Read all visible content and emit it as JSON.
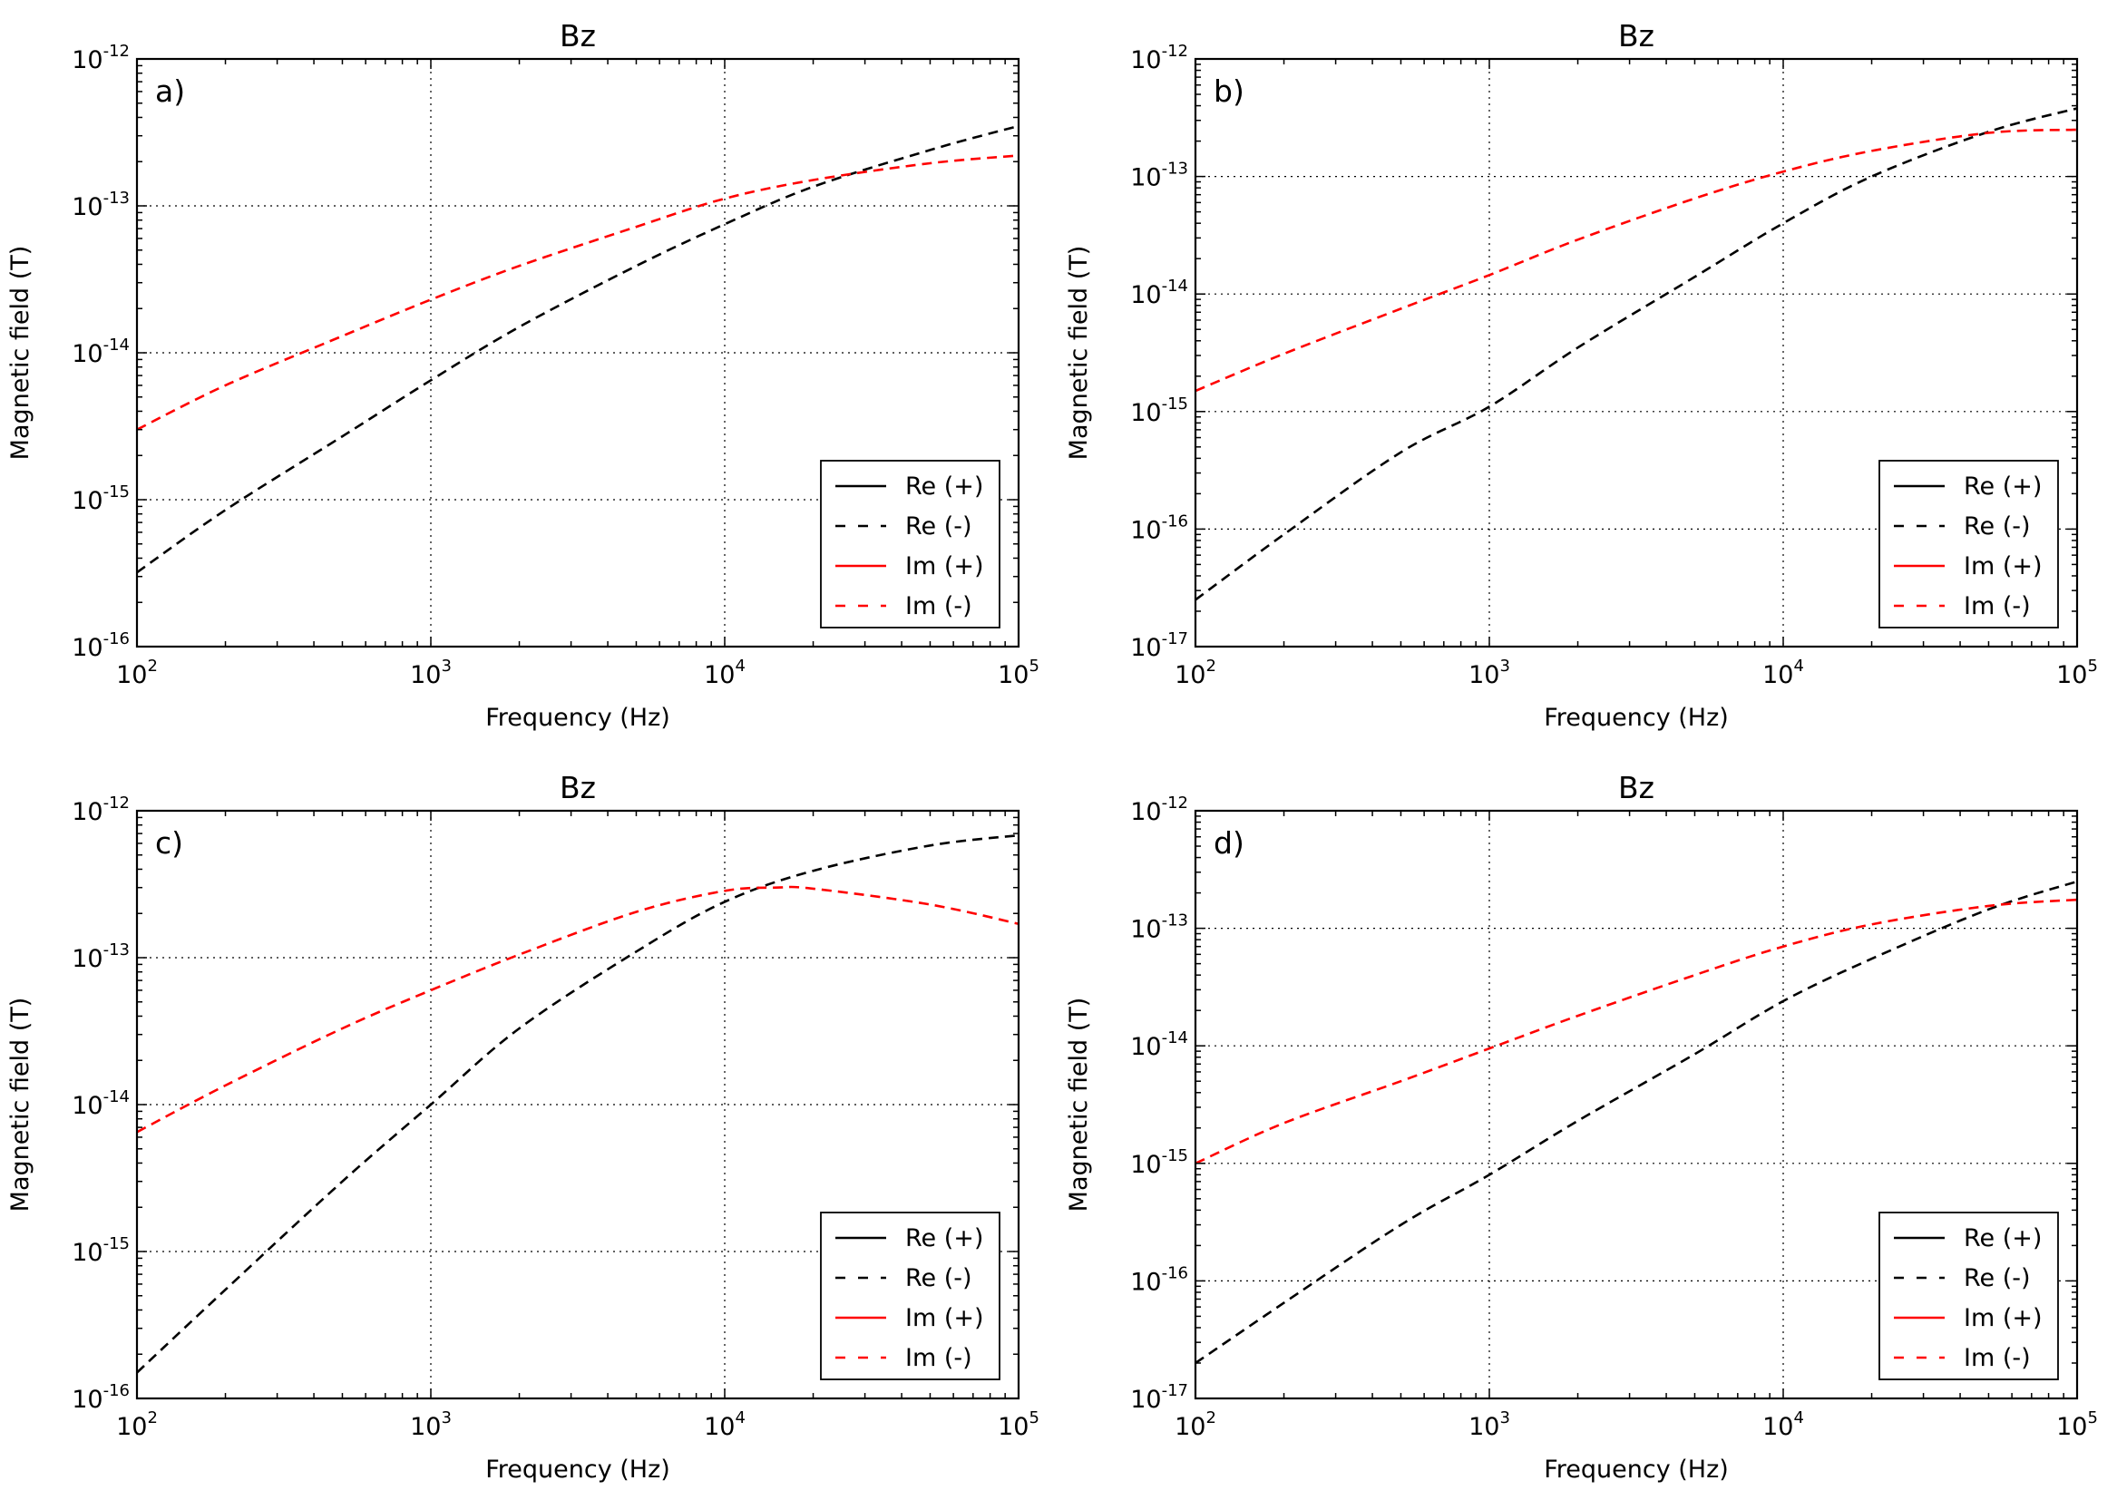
{
  "chart_data": [
    {
      "type": "line",
      "title": "Bz",
      "panel_label": "a)",
      "xlabel": "Frequency (Hz)",
      "ylabel": "Magnetic field (T)",
      "xscale": "log",
      "yscale": "log",
      "xlim": [
        100,
        100000
      ],
      "ylim": [
        1e-16,
        1e-12
      ],
      "x_ticks": [
        {
          "base": "10",
          "exp": "2"
        },
        {
          "base": "10",
          "exp": "3"
        },
        {
          "base": "10",
          "exp": "4"
        },
        {
          "base": "10",
          "exp": "5"
        }
      ],
      "y_ticks": [
        {
          "base": "10",
          "exp": "-16"
        },
        {
          "base": "10",
          "exp": "-15"
        },
        {
          "base": "10",
          "exp": "-14"
        },
        {
          "base": "10",
          "exp": "-13"
        },
        {
          "base": "10",
          "exp": "-12"
        }
      ],
      "grid": true,
      "legend": {
        "position": "lower-right",
        "entries": [
          "Re (+)",
          "Re (-)",
          "Im (+)",
          "Im (-)"
        ]
      },
      "series": [
        {
          "name": "Re (+)",
          "color": "#000000",
          "style": "solid",
          "x": [],
          "y": []
        },
        {
          "name": "Re (-)",
          "color": "#000000",
          "style": "dashed",
          "x": [
            100,
            200,
            500,
            1000,
            2000,
            5000,
            10000,
            20000,
            50000,
            100000
          ],
          "y": [
            3.2e-16,
            8.5e-16,
            2.7e-15,
            6.5e-15,
            1.5e-14,
            3.9e-14,
            7.5e-14,
            1.35e-13,
            2.4e-13,
            3.5e-13
          ]
        },
        {
          "name": "Im (+)",
          "color": "#ff0000",
          "style": "solid",
          "x": [],
          "y": []
        },
        {
          "name": "Im (-)",
          "color": "#ff0000",
          "style": "dashed",
          "x": [
            100,
            200,
            500,
            1000,
            2000,
            5000,
            10000,
            20000,
            50000,
            100000
          ],
          "y": [
            3e-15,
            6e-15,
            1.3e-14,
            2.3e-14,
            3.9e-14,
            7.2e-14,
            1.12e-13,
            1.5e-13,
            1.95e-13,
            2.2e-13
          ]
        }
      ]
    },
    {
      "type": "line",
      "title": "Bz",
      "panel_label": "b)",
      "xlabel": "Frequency (Hz)",
      "ylabel": "Magnetic field (T)",
      "xscale": "log",
      "yscale": "log",
      "xlim": [
        100,
        100000
      ],
      "ylim": [
        1e-17,
        1e-12
      ],
      "x_ticks": [
        {
          "base": "10",
          "exp": "2"
        },
        {
          "base": "10",
          "exp": "3"
        },
        {
          "base": "10",
          "exp": "4"
        },
        {
          "base": "10",
          "exp": "5"
        }
      ],
      "y_ticks": [
        {
          "base": "10",
          "exp": "-17"
        },
        {
          "base": "10",
          "exp": "-16"
        },
        {
          "base": "10",
          "exp": "-15"
        },
        {
          "base": "10",
          "exp": "-14"
        },
        {
          "base": "10",
          "exp": "-13"
        },
        {
          "base": "10",
          "exp": "-12"
        }
      ],
      "grid": true,
      "legend": {
        "position": "lower-right",
        "entries": [
          "Re (+)",
          "Re (-)",
          "Im (+)",
          "Im (-)"
        ]
      },
      "series": [
        {
          "name": "Re (+)",
          "color": "#000000",
          "style": "solid",
          "x": [],
          "y": []
        },
        {
          "name": "Re (-)",
          "color": "#000000",
          "style": "dashed",
          "x": [
            100,
            200,
            500,
            1000,
            2000,
            5000,
            10000,
            20000,
            50000,
            100000
          ],
          "y": [
            2.5e-17,
            9e-17,
            4.5e-16,
            1.1e-15,
            3.5e-15,
            1.4e-14,
            4e-14,
            1e-13,
            2.4e-13,
            3.8e-13
          ]
        },
        {
          "name": "Im (+)",
          "color": "#ff0000",
          "style": "solid",
          "x": [],
          "y": []
        },
        {
          "name": "Im (-)",
          "color": "#ff0000",
          "style": "dashed",
          "x": [
            100,
            200,
            500,
            1000,
            2000,
            5000,
            10000,
            20000,
            50000,
            100000
          ],
          "y": [
            1.5e-15,
            3.1e-15,
            7.5e-15,
            1.45e-14,
            2.9e-14,
            6.5e-14,
            1.1e-13,
            1.65e-13,
            2.35e-13,
            2.5e-13
          ]
        }
      ]
    },
    {
      "type": "line",
      "title": "Bz",
      "panel_label": "c)",
      "xlabel": "Frequency (Hz)",
      "ylabel": "Magnetic field (T)",
      "xscale": "log",
      "yscale": "log",
      "xlim": [
        100,
        100000
      ],
      "ylim": [
        1e-16,
        1e-12
      ],
      "x_ticks": [
        {
          "base": "10",
          "exp": "2"
        },
        {
          "base": "10",
          "exp": "3"
        },
        {
          "base": "10",
          "exp": "4"
        },
        {
          "base": "10",
          "exp": "5"
        }
      ],
      "y_ticks": [
        {
          "base": "10",
          "exp": "-16"
        },
        {
          "base": "10",
          "exp": "-15"
        },
        {
          "base": "10",
          "exp": "-14"
        },
        {
          "base": "10",
          "exp": "-13"
        },
        {
          "base": "10",
          "exp": "-12"
        }
      ],
      "grid": true,
      "legend": {
        "position": "lower-right",
        "entries": [
          "Re (+)",
          "Re (-)",
          "Im (+)",
          "Im (-)"
        ]
      },
      "series": [
        {
          "name": "Re (+)",
          "color": "#000000",
          "style": "solid",
          "x": [],
          "y": []
        },
        {
          "name": "Re (-)",
          "color": "#000000",
          "style": "dashed",
          "x": [
            100,
            200,
            500,
            1000,
            2000,
            5000,
            10000,
            20000,
            50000,
            100000
          ],
          "y": [
            1.5e-16,
            5.5e-16,
            3e-15,
            1e-14,
            3.3e-14,
            1.1e-13,
            2.4e-13,
            3.9e-13,
            5.8e-13,
            6.8e-13
          ]
        },
        {
          "name": "Im (+)",
          "color": "#ff0000",
          "style": "solid",
          "x": [],
          "y": []
        },
        {
          "name": "Im (-)",
          "color": "#ff0000",
          "style": "dashed",
          "x": [
            100,
            200,
            500,
            1000,
            2000,
            5000,
            10000,
            15000,
            20000,
            50000,
            100000
          ],
          "y": [
            6.5e-15,
            1.35e-14,
            3.3e-14,
            6e-14,
            1.05e-13,
            2.05e-13,
            2.85e-13,
            3e-13,
            2.95e-13,
            2.3e-13,
            1.7e-13
          ]
        }
      ]
    },
    {
      "type": "line",
      "title": "Bz",
      "panel_label": "d)",
      "xlabel": "Frequency (Hz)",
      "ylabel": "Magnetic field (T)",
      "xscale": "log",
      "yscale": "log",
      "xlim": [
        100,
        100000
      ],
      "ylim": [
        1e-17,
        1e-12
      ],
      "x_ticks": [
        {
          "base": "10",
          "exp": "2"
        },
        {
          "base": "10",
          "exp": "3"
        },
        {
          "base": "10",
          "exp": "4"
        },
        {
          "base": "10",
          "exp": "5"
        }
      ],
      "y_ticks": [
        {
          "base": "10",
          "exp": "-17"
        },
        {
          "base": "10",
          "exp": "-16"
        },
        {
          "base": "10",
          "exp": "-15"
        },
        {
          "base": "10",
          "exp": "-14"
        },
        {
          "base": "10",
          "exp": "-13"
        },
        {
          "base": "10",
          "exp": "-12"
        }
      ],
      "grid": true,
      "legend": {
        "position": "lower-right",
        "entries": [
          "Re (+)",
          "Re (-)",
          "Im (+)",
          "Im (-)"
        ]
      },
      "series": [
        {
          "name": "Re (+)",
          "color": "#000000",
          "style": "solid",
          "x": [],
          "y": []
        },
        {
          "name": "Re (-)",
          "color": "#000000",
          "style": "dashed",
          "x": [
            100,
            200,
            500,
            1000,
            2000,
            5000,
            10000,
            20000,
            50000,
            100000
          ],
          "y": [
            2e-17,
            6.5e-17,
            3e-16,
            8e-16,
            2.3e-15,
            8.5e-15,
            2.4e-14,
            5.5e-14,
            1.45e-13,
            2.5e-13
          ]
        },
        {
          "name": "Im (+)",
          "color": "#ff0000",
          "style": "solid",
          "x": [],
          "y": []
        },
        {
          "name": "Im (-)",
          "color": "#ff0000",
          "style": "dashed",
          "x": [
            100,
            200,
            500,
            1000,
            2000,
            5000,
            10000,
            20000,
            50000,
            100000
          ],
          "y": [
            1e-15,
            2.2e-15,
            5e-15,
            9.5e-15,
            1.8e-14,
            4e-14,
            7e-14,
            1.08e-13,
            1.55e-13,
            1.75e-13
          ]
        }
      ]
    }
  ]
}
